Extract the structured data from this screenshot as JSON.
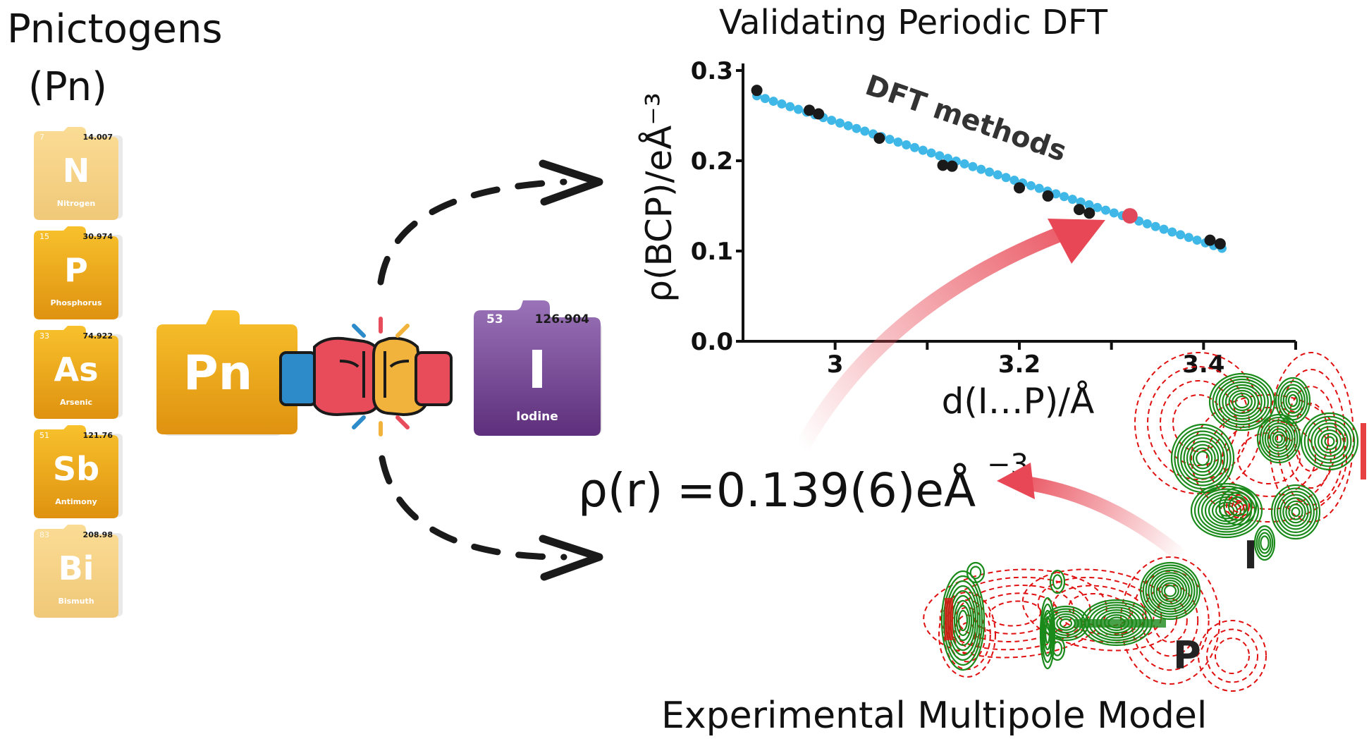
{
  "left_panel": {
    "title_line1": "Pnictogens",
    "title_line2": "(Pn)",
    "elements": [
      {
        "number": "7",
        "mass": "14.007",
        "symbol": "N",
        "name": "Nitrogen",
        "faded": true
      },
      {
        "number": "15",
        "mass": "30.974",
        "symbol": "P",
        "name": "Phosphorus",
        "faded": false
      },
      {
        "number": "33",
        "mass": "74.922",
        "symbol": "As",
        "name": "Arsenic",
        "faded": false
      },
      {
        "number": "51",
        "mass": "121.76",
        "symbol": "Sb",
        "name": "Antimony",
        "faded": false
      },
      {
        "number": "83",
        "mass": "208.98",
        "symbol": "Bi",
        "name": "Bismuth",
        "faded": true
      }
    ]
  },
  "center": {
    "pn_symbol": "Pn",
    "iodine": {
      "number": "53",
      "mass": "126.904",
      "symbol": "I",
      "name": "Iodine"
    },
    "fist_left_color": "#e84b5a",
    "fist_right_color": "#f2b33d",
    "cuff_left_color": "#2e8bc9",
    "cuff_right_color": "#e84b5a"
  },
  "chart_title": "Validating Periodic DFT",
  "chart_data": {
    "type": "scatter",
    "xlabel": "d(I…P)/Å",
    "ylabel": "ρ(BCP)/eÅ⁻³",
    "xlim": [
      2.9,
      3.5
    ],
    "ylim": [
      0.0,
      0.3
    ],
    "xticks": [
      "3",
      "3.2",
      "3.4"
    ],
    "xtick_values": [
      3.0,
      3.2,
      3.4
    ],
    "yticks": [
      "0.0",
      "0.1",
      "0.2",
      "0.3"
    ],
    "ytick_values": [
      0.0,
      0.1,
      0.2,
      0.3
    ],
    "annotation": "DFT methods",
    "fit_line": {
      "x_start": 2.915,
      "x_end": 3.42,
      "y_start": 0.272,
      "y_end": 0.103,
      "color": "#3fb8e8"
    },
    "points": {
      "color": "#1a1a1a",
      "x": [
        2.915,
        2.972,
        2.982,
        3.048,
        3.117,
        3.127,
        3.2,
        3.231,
        3.265,
        3.276,
        3.407,
        3.418
      ],
      "y": [
        0.278,
        0.256,
        0.252,
        0.225,
        0.195,
        0.194,
        0.17,
        0.161,
        0.146,
        0.142,
        0.112,
        0.108
      ]
    },
    "highlight": {
      "x": 3.32,
      "y": 0.139,
      "color": "#e0485c"
    }
  },
  "result": {
    "rho_label": "ρ(r)",
    "equals": "=",
    "value": "0.139(6)eÅ",
    "exponent": "−3"
  },
  "map": {
    "caption": "Experimental Multipole Model",
    "atom_p": "P",
    "atom_i": "I",
    "positive_color": "#1a8a1a",
    "negative_color": "#e01010"
  }
}
